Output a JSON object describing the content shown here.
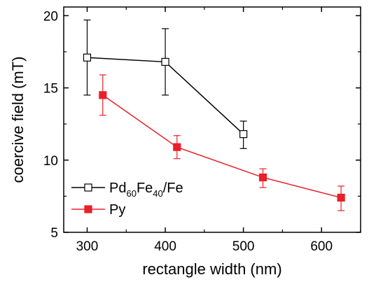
{
  "chart_data": {
    "type": "line",
    "xlabel": "rectangle width (nm)",
    "ylabel": "coercive field (mT)",
    "xlim": [
      270,
      650
    ],
    "ylim": [
      5,
      20.6
    ],
    "xticks": [
      300,
      400,
      500,
      600
    ],
    "yticks": [
      5,
      10,
      15,
      20
    ],
    "grid": false,
    "legend_position": "bottom-left",
    "series": [
      {
        "name": "Pd60Fe40/Fe",
        "name_parts": {
          "base1": "Pd",
          "sub1": "60",
          "base2": "Fe",
          "sub2": "40",
          "tail": "/Fe"
        },
        "color": "#000000",
        "marker": "open-square",
        "points": [
          {
            "x": 300,
            "y": 17.1,
            "err_low": 14.5,
            "err_high": 19.7
          },
          {
            "x": 400,
            "y": 16.8,
            "err_low": 14.5,
            "err_high": 19.1
          },
          {
            "x": 500,
            "y": 11.8,
            "err_low": 10.8,
            "err_high": 12.7
          }
        ]
      },
      {
        "name": "Py",
        "color": "#e8202a",
        "marker": "filled-square",
        "points": [
          {
            "x": 320,
            "y": 14.5,
            "err_low": 13.1,
            "err_high": 15.9
          },
          {
            "x": 415,
            "y": 10.9,
            "err_low": 10.1,
            "err_high": 11.7
          },
          {
            "x": 525,
            "y": 8.8,
            "err_low": 8.1,
            "err_high": 9.4
          },
          {
            "x": 625,
            "y": 7.4,
            "err_low": 6.5,
            "err_high": 8.2
          }
        ]
      }
    ]
  }
}
